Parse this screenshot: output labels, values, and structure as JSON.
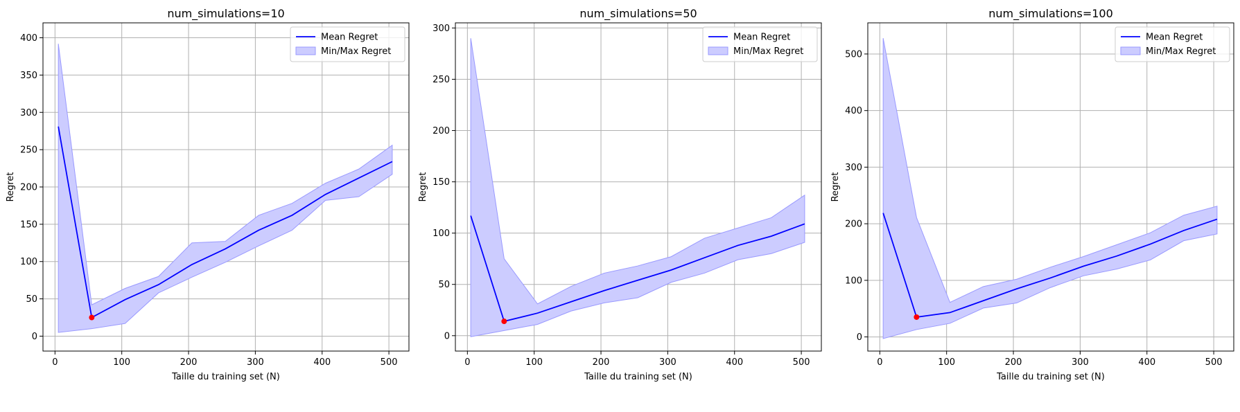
{
  "colors": {
    "mean_line": "#0000ff",
    "band_fill": "#ccccff",
    "band_edge": "#9999ff",
    "marker": "#ff0000",
    "grid": "#b0b0b0",
    "axes": "#000000"
  },
  "chart_data": [
    {
      "type": "line",
      "title": "num_simulations=10",
      "xlabel": "Taille du training set (N)",
      "ylabel": "Regret",
      "xlim": [
        -18,
        530
      ],
      "ylim": [
        -20,
        420
      ],
      "xticks": [
        0,
        100,
        200,
        300,
        400,
        500
      ],
      "yticks": [
        0,
        50,
        100,
        150,
        200,
        250,
        300,
        350,
        400
      ],
      "grid": true,
      "legend_position": "top-right",
      "x": [
        5,
        55,
        105,
        155,
        205,
        255,
        305,
        355,
        405,
        455,
        505
      ],
      "series": [
        {
          "name": "Mean Regret",
          "kind": "line",
          "values": [
            281,
            25,
            49,
            69,
            96,
            117,
            142,
            162,
            190,
            212,
            234
          ]
        },
        {
          "name": "Min/Max Regret",
          "kind": "band",
          "min": [
            5,
            10,
            17,
            58,
            79,
            99,
            121,
            142,
            182,
            187,
            217
          ],
          "max": [
            392,
            42,
            64,
            80,
            125,
            127,
            162,
            178,
            205,
            224,
            256
          ]
        }
      ],
      "highlight_point": {
        "x": 55,
        "y": 25
      }
    },
    {
      "type": "line",
      "title": "num_simulations=50",
      "xlabel": "Taille du training set (N)",
      "ylabel": "Regret",
      "xlim": [
        -18,
        530
      ],
      "ylim": [
        -15,
        305
      ],
      "xticks": [
        0,
        100,
        200,
        300,
        400,
        500
      ],
      "yticks": [
        0,
        50,
        100,
        150,
        200,
        250,
        300
      ],
      "grid": true,
      "legend_position": "top-right",
      "x": [
        5,
        55,
        105,
        155,
        205,
        255,
        305,
        355,
        405,
        455,
        505
      ],
      "series": [
        {
          "name": "Mean Regret",
          "kind": "line",
          "values": [
            117,
            14,
            22,
            33,
            44,
            54,
            64,
            76,
            88,
            97,
            109
          ]
        },
        {
          "name": "Min/Max Regret",
          "kind": "band",
          "min": [
            -1,
            5,
            11,
            24,
            32,
            37,
            52,
            61,
            74,
            80,
            91
          ],
          "max": [
            290,
            75,
            31,
            48,
            61,
            68,
            77,
            95,
            105,
            115,
            137
          ]
        }
      ],
      "highlight_point": {
        "x": 55,
        "y": 14
      }
    },
    {
      "type": "line",
      "title": "num_simulations=100",
      "xlabel": "Taille du training set (N)",
      "ylabel": "Regret",
      "xlim": [
        -18,
        530
      ],
      "ylim": [
        -25,
        555
      ],
      "xticks": [
        0,
        100,
        200,
        300,
        400,
        500
      ],
      "yticks": [
        0,
        100,
        200,
        300,
        400,
        500
      ],
      "grid": true,
      "legend_position": "top-right",
      "x": [
        5,
        55,
        105,
        155,
        205,
        255,
        305,
        355,
        405,
        455,
        505
      ],
      "series": [
        {
          "name": "Mean Regret",
          "kind": "line",
          "values": [
            219,
            35,
            43,
            64,
            85,
            104,
            125,
            143,
            164,
            188,
            208
          ]
        },
        {
          "name": "Min/Max Regret",
          "kind": "band",
          "min": [
            -3,
            13,
            24,
            51,
            60,
            87,
            108,
            120,
            136,
            170,
            182
          ],
          "max": [
            528,
            211,
            61,
            89,
            102,
            123,
            142,
            163,
            184,
            215,
            231
          ]
        }
      ],
      "highlight_point": {
        "x": 55,
        "y": 35
      }
    }
  ]
}
